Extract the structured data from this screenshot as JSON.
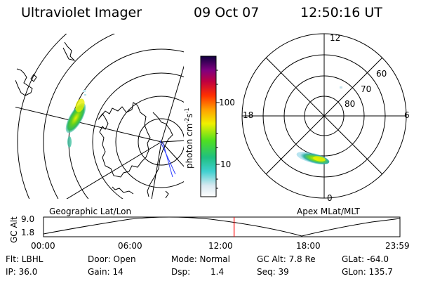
{
  "header": {
    "title": "Ultraviolet Imager",
    "date": "09 Oct 07",
    "time": "12:50:16 UT"
  },
  "colorbar": {
    "label_main": "photon cm",
    "label_sup1": "-2",
    "label_mid": "s",
    "label_sup2": "-1",
    "ticks": [
      "100",
      "10"
    ],
    "scale": "log"
  },
  "geographic_panel": {
    "title": "Geographic Lat/Lon"
  },
  "apex_panel": {
    "title": "Apex MLat/MLT",
    "mlt_labels": {
      "top": "12",
      "left": "18",
      "right": "6",
      "bottom": "0"
    },
    "mlat_labels": [
      "60",
      "70",
      "80"
    ]
  },
  "timeline": {
    "ylabel": "GC Alt",
    "y_ticks": [
      "9.0",
      "1.8"
    ],
    "x_ticks": [
      "00:00",
      "06:00",
      "12:00",
      "18:00",
      "23:59"
    ],
    "current_marker": "12:50",
    "marker_color": "#ff0000"
  },
  "footer": {
    "flt": "Flt: LBHL",
    "ip": "IP: 36.0",
    "door": "Door: Open",
    "gain": "Gain: 14",
    "mode": "Mode: Normal",
    "dsp_label": "Dsp:",
    "dsp_value": "1.4",
    "gcalt": "GC Alt: 7.8 Re",
    "seq": "Seq: 39",
    "glat": "GLat: -64.0",
    "glon": "GLon: 135.7"
  }
}
